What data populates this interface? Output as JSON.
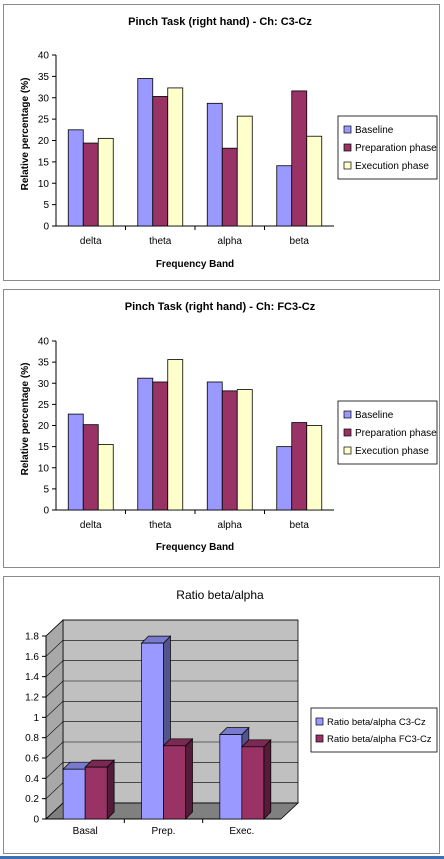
{
  "chart_data": [
    {
      "type": "bar",
      "title": "Pinch Task (right hand) -  Ch: C3-Cz",
      "xlabel": "Frequency Band",
      "ylabel": "Relative percentage (%)",
      "categories": [
        "delta",
        "theta",
        "alpha",
        "beta"
      ],
      "ylim": [
        0,
        40
      ],
      "yticks": [
        "0",
        "5",
        "10",
        "15",
        "20",
        "25",
        "30",
        "35",
        "40"
      ],
      "legend_position": "right",
      "series": [
        {
          "name": "Baseline",
          "color": "#9999ff",
          "values": [
            22.5,
            34.5,
            28.7,
            14.1
          ]
        },
        {
          "name": "Preparation phase",
          "color": "#993366",
          "values": [
            19.4,
            30.3,
            18.2,
            31.6
          ]
        },
        {
          "name": "Execution phase",
          "color": "#ffffcc",
          "values": [
            20.5,
            32.3,
            25.7,
            21.0
          ]
        }
      ]
    },
    {
      "type": "bar",
      "title": "Pinch Task (right hand) -  Ch: FC3-Cz",
      "xlabel": "Frequency Band",
      "ylabel": "Relative percentage (%)",
      "categories": [
        "delta",
        "theta",
        "alpha",
        "beta"
      ],
      "ylim": [
        0,
        40
      ],
      "yticks": [
        "0",
        "5",
        "10",
        "15",
        "20",
        "25",
        "30",
        "35",
        "40"
      ],
      "legend_position": "right",
      "series": [
        {
          "name": "Baseline",
          "color": "#9999ff",
          "values": [
            22.7,
            31.2,
            30.3,
            15.0
          ]
        },
        {
          "name": "Preparation phase",
          "color": "#993366",
          "values": [
            20.2,
            30.3,
            28.2,
            20.7
          ]
        },
        {
          "name": "Execution phase",
          "color": "#ffffcc",
          "values": [
            15.5,
            35.6,
            28.5,
            20.0
          ]
        }
      ]
    },
    {
      "type": "bar",
      "style": "3d",
      "title": "Ratio beta/alpha",
      "categories": [
        "Basal",
        "Prep.",
        "Exec."
      ],
      "ylim": [
        0,
        1.8
      ],
      "yticks": [
        "0",
        "0.2",
        "0.4",
        "0.6",
        "0.8",
        "1",
        "1.2",
        "1.4",
        "1.6",
        "1.8"
      ],
      "legend_position": "right",
      "wall_color": "#c0c0c0",
      "series": [
        {
          "name": "Ratio beta/alpha C3-Cz",
          "color": "#9999ff",
          "values": [
            0.49,
            1.73,
            0.83
          ]
        },
        {
          "name": "Ratio beta/alpha FC3-Cz",
          "color": "#993366",
          "values": [
            0.51,
            0.72,
            0.71
          ]
        }
      ]
    }
  ]
}
